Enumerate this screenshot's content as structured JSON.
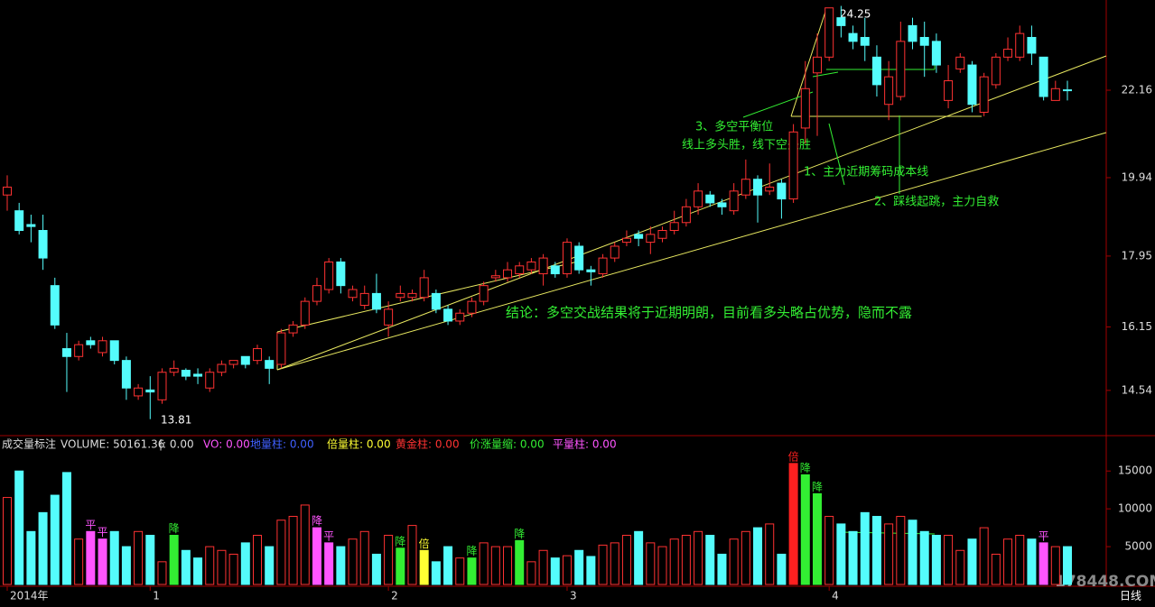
{
  "chart_data": [
    {
      "type": "candlestick",
      "categories": [
        "2014年",
        null,
        null,
        null,
        null,
        null,
        null,
        null,
        null,
        null,
        null,
        null,
        "1",
        null,
        null,
        null,
        null,
        null,
        null,
        null,
        null,
        null,
        null,
        null,
        null,
        null,
        null,
        null,
        null,
        null,
        null,
        null,
        "2",
        null,
        null,
        null,
        null,
        null,
        null,
        null,
        null,
        null,
        null,
        null,
        null,
        null,
        null,
        "3",
        null,
        null,
        null,
        null,
        null,
        null,
        null,
        null,
        null,
        null,
        null,
        null,
        null,
        null,
        null,
        null,
        null,
        null,
        null,
        null,
        null,
        "4",
        null,
        null,
        null,
        null,
        null,
        null,
        null,
        null,
        null,
        null,
        null,
        null,
        null,
        null,
        null,
        null,
        null,
        null,
        null,
        null
      ],
      "candles": [
        [
          19.5,
          20.0,
          19.1,
          19.7
        ],
        [
          19.1,
          19.3,
          18.5,
          18.6
        ],
        [
          18.75,
          19.0,
          18.3,
          18.7
        ],
        [
          18.6,
          19.0,
          17.6,
          17.9
        ],
        [
          17.2,
          17.4,
          16.1,
          16.2
        ],
        [
          15.6,
          16.0,
          14.5,
          15.4
        ],
        [
          15.4,
          15.8,
          15.3,
          15.7
        ],
        [
          15.8,
          15.9,
          15.6,
          15.7
        ],
        [
          15.5,
          15.9,
          15.4,
          15.8
        ],
        [
          15.8,
          15.8,
          15.2,
          15.3
        ],
        [
          15.3,
          15.4,
          14.3,
          14.6
        ],
        [
          14.4,
          14.7,
          14.3,
          14.6
        ],
        [
          14.55,
          14.9,
          13.81,
          14.5
        ],
        [
          14.3,
          15.1,
          14.2,
          15.0
        ],
        [
          15.0,
          15.3,
          14.9,
          15.1
        ],
        [
          15.05,
          15.1,
          14.8,
          14.9
        ],
        [
          14.95,
          15.1,
          14.7,
          14.9
        ],
        [
          14.6,
          15.1,
          14.5,
          15.0
        ],
        [
          15.0,
          15.3,
          14.9,
          15.2
        ],
        [
          15.2,
          15.3,
          15.1,
          15.3
        ],
        [
          15.4,
          15.4,
          15.1,
          15.2
        ],
        [
          15.3,
          15.7,
          15.2,
          15.6
        ],
        [
          15.3,
          15.4,
          14.7,
          15.1
        ],
        [
          15.2,
          16.1,
          15.1,
          16.0
        ],
        [
          16.0,
          16.3,
          15.9,
          16.2
        ],
        [
          16.2,
          16.9,
          16.1,
          16.8
        ],
        [
          16.8,
          17.4,
          16.7,
          17.2
        ],
        [
          17.1,
          17.9,
          17.0,
          17.8
        ],
        [
          17.8,
          17.9,
          17.0,
          17.2
        ],
        [
          16.9,
          17.2,
          16.8,
          17.1
        ],
        [
          16.7,
          17.2,
          16.6,
          17.0
        ],
        [
          17.0,
          17.5,
          16.5,
          16.6
        ],
        [
          16.2,
          16.8,
          15.9,
          16.6
        ],
        [
          16.9,
          17.2,
          16.8,
          17.0
        ],
        [
          16.9,
          17.1,
          16.8,
          17.0
        ],
        [
          16.9,
          17.6,
          16.8,
          17.4
        ],
        [
          17.0,
          17.1,
          16.5,
          16.6
        ],
        [
          16.6,
          16.7,
          16.2,
          16.3
        ],
        [
          16.3,
          16.6,
          16.2,
          16.5
        ],
        [
          16.5,
          16.9,
          16.4,
          16.8
        ],
        [
          16.8,
          17.3,
          16.7,
          17.2
        ],
        [
          17.4,
          17.6,
          17.3,
          17.45
        ],
        [
          17.4,
          17.8,
          17.3,
          17.6
        ],
        [
          17.5,
          17.8,
          17.4,
          17.7
        ],
        [
          17.6,
          17.9,
          17.5,
          17.8
        ],
        [
          17.5,
          18.0,
          17.2,
          17.9
        ],
        [
          17.7,
          17.8,
          17.4,
          17.5
        ],
        [
          17.5,
          18.4,
          17.4,
          18.3
        ],
        [
          18.2,
          18.3,
          17.5,
          17.6
        ],
        [
          17.6,
          17.7,
          17.2,
          17.55
        ],
        [
          17.5,
          18.0,
          17.4,
          17.9
        ],
        [
          17.9,
          18.3,
          17.8,
          18.2
        ],
        [
          18.3,
          18.6,
          18.2,
          18.4
        ],
        [
          18.5,
          18.6,
          18.2,
          18.4
        ],
        [
          18.3,
          18.7,
          18.0,
          18.5
        ],
        [
          18.4,
          18.7,
          18.3,
          18.6
        ],
        [
          18.6,
          19.1,
          18.5,
          18.8
        ],
        [
          18.8,
          19.4,
          18.7,
          19.2
        ],
        [
          19.2,
          19.8,
          19.0,
          19.6
        ],
        [
          19.5,
          19.6,
          19.2,
          19.3
        ],
        [
          19.3,
          19.4,
          19.0,
          19.2
        ],
        [
          19.1,
          19.8,
          19.0,
          19.6
        ],
        [
          19.5,
          20.4,
          19.4,
          19.9
        ],
        [
          19.9,
          20.0,
          18.8,
          19.5
        ],
        [
          19.6,
          20.3,
          19.5,
          19.7
        ],
        [
          19.8,
          19.9,
          18.9,
          19.4
        ],
        [
          19.4,
          21.3,
          19.3,
          21.1
        ],
        [
          21.2,
          22.9,
          20.8,
          22.2
        ],
        [
          22.6,
          23.6,
          21.0,
          23.0
        ],
        [
          23.0,
          24.25,
          22.9,
          24.25
        ],
        [
          24.0,
          24.3,
          23.5,
          23.8
        ],
        [
          23.6,
          23.8,
          23.2,
          23.4
        ],
        [
          23.5,
          24.0,
          22.9,
          23.3
        ],
        [
          23.0,
          23.3,
          22.0,
          22.3
        ],
        [
          21.8,
          22.9,
          21.4,
          22.5
        ],
        [
          22.0,
          23.9,
          21.9,
          23.4
        ],
        [
          23.8,
          24.0,
          23.2,
          23.4
        ],
        [
          23.5,
          23.9,
          22.5,
          23.3
        ],
        [
          23.4,
          23.6,
          22.6,
          22.8
        ],
        [
          21.9,
          22.8,
          21.7,
          22.4
        ],
        [
          22.7,
          23.1,
          22.6,
          23.0
        ],
        [
          22.8,
          22.9,
          21.6,
          21.8
        ],
        [
          21.6,
          22.6,
          21.5,
          22.5
        ],
        [
          22.3,
          23.1,
          22.2,
          23.0
        ],
        [
          23.0,
          23.5,
          22.9,
          23.2
        ],
        [
          23.0,
          23.8,
          22.9,
          23.6
        ],
        [
          23.5,
          23.8,
          22.8,
          23.1
        ],
        [
          23.0,
          23.0,
          21.9,
          22.0
        ],
        [
          21.9,
          22.4,
          21.9,
          22.2
        ],
        [
          22.17,
          22.4,
          21.9,
          22.16
        ]
      ],
      "up_color": "#ff3232",
      "down_color": "#54fcfc",
      "ylim": [
        13.46,
        24.45
      ],
      "yticks": [
        22.16,
        19.94,
        17.95,
        16.15,
        14.54
      ],
      "annotations": [
        "24.25",
        "13.81",
        "3、多空平衡位",
        "线上多头胜，线下空头胜",
        "1、主力近期筹码成本线",
        "2、踩线起跳，主力自救",
        "结论：多空交战结果将于近期明朗，目前看多头略占优势，隐而不露"
      ]
    },
    {
      "type": "bar",
      "values": [
        11500,
        15000,
        7000,
        9500,
        11800,
        14800,
        6000,
        7000,
        6000,
        7000,
        5000,
        7000,
        6500,
        3000,
        6500,
        4500,
        3500,
        5000,
        4500,
        4000,
        5500,
        6500,
        5000,
        8500,
        9000,
        10500,
        7500,
        5500,
        5000,
        6000,
        7000,
        4000,
        6500,
        4800,
        7800,
        4500,
        3000,
        5000,
        3500,
        3500,
        5500,
        5000,
        5000,
        5800,
        3000,
        4500,
        3500,
        3800,
        4500,
        3700,
        5200,
        5500,
        6500,
        7000,
        5500,
        5000,
        6000,
        6500,
        7000,
        6500,
        4000,
        6000,
        7000,
        7500,
        8000,
        4000,
        16000,
        14500,
        12000,
        9000,
        8000,
        7000,
        9500,
        9000,
        8000,
        9000,
        8500,
        7000,
        6500,
        6500,
        4500,
        6000,
        7500,
        4000,
        6000,
        6500,
        6000,
        5500,
        5000,
        5000
      ],
      "ylim": [
        0,
        19200
      ],
      "yticks": [
        15000,
        10000,
        5000
      ],
      "tags": {
        "7": {
          "label": "平",
          "color": "#ff55ff"
        },
        "8": {
          "label": "平",
          "color": "#ff55ff"
        },
        "14": {
          "label": "降",
          "color": "#33ee33"
        },
        "26": {
          "label": "降",
          "color": "#ff55ff"
        },
        "27": {
          "label": "平",
          "color": "#ff55ff"
        },
        "33": {
          "label": "降",
          "color": "#33ee33"
        },
        "35": {
          "label": "倍",
          "color": "#ffff33"
        },
        "39": {
          "label": "降",
          "color": "#33ee33"
        },
        "43": {
          "label": "降",
          "color": "#33ee33"
        },
        "66": {
          "label": "倍",
          "color": "#ff2020"
        },
        "67": {
          "label": "降",
          "color": "#33ee33"
        },
        "68": {
          "label": "降",
          "color": "#33ee33"
        },
        "87": {
          "label": "平",
          "color": "#ff55ff"
        }
      },
      "indicator": [
        "成交量标注",
        "VOLUME: 50161.36",
        "|: 0.00",
        "VO: 0.00",
        "地量柱: 0.00",
        "倍量柱: 0.00",
        "黄金柱: 0.00",
        "价涨量缩: 0.00",
        "平量柱: 0.00"
      ]
    }
  ],
  "footer": {
    "period": "日线",
    "watermark": "178448.COM"
  }
}
